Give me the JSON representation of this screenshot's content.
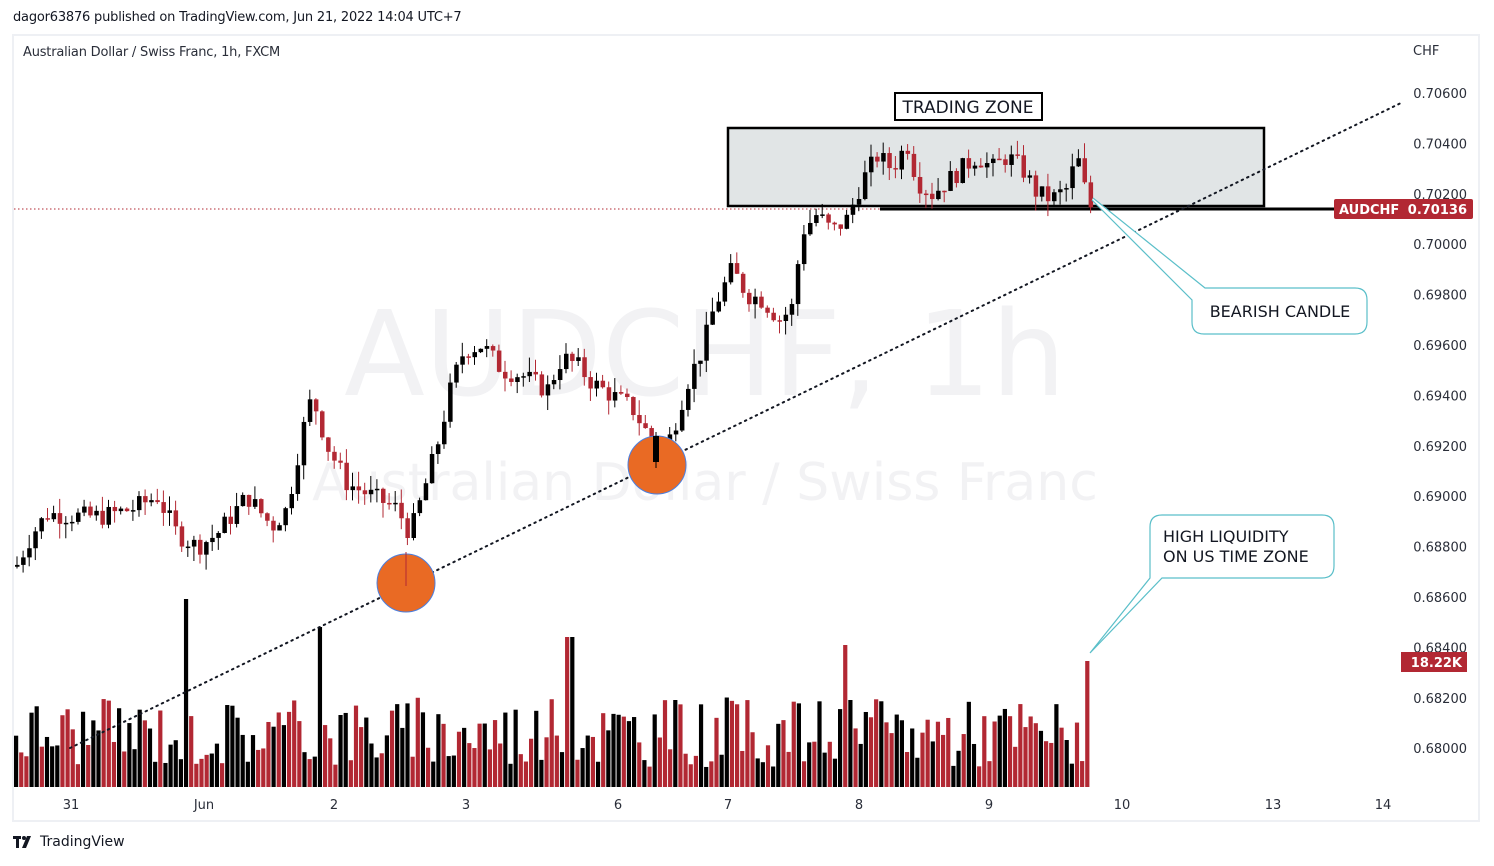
{
  "header": {
    "publisher": "dagor63876 published on TradingView.com, Jun 21, 2022 14:04 UTC+7",
    "symbol_title": "Australian Dollar / Swiss Franc, 1h, FXCM",
    "currency": "CHF"
  },
  "watermark": {
    "symbol": "AUDCHF, 1h",
    "name": "Australian Dollar / Swiss Franc"
  },
  "price_axis": {
    "ticks": [
      "0.70600",
      "0.70400",
      "0.70200",
      "0.70000",
      "0.69800",
      "0.69600",
      "0.69400",
      "0.69200",
      "0.69000",
      "0.68800",
      "0.68600",
      "0.68400",
      "0.68200",
      "0.68000"
    ]
  },
  "time_axis": {
    "ticks": [
      "31",
      "Jun",
      "2",
      "3",
      "6",
      "7",
      "8",
      "9",
      "10",
      "13",
      "14"
    ]
  },
  "last_price": {
    "symbol": "AUDCHF",
    "value": "0.70136",
    "color": "#b22833"
  },
  "volume_label": {
    "value": "18.22K",
    "color": "#b22833"
  },
  "annotations": {
    "trading_zone": "TRADING ZONE",
    "bearish_candle": "BEARISH CANDLE",
    "liquidity_line1": "HIGH LIQUIDITY",
    "liquidity_line2": "ON US TIME ZONE"
  },
  "footer": {
    "brand": "TradingView"
  },
  "colors": {
    "up": "#000000",
    "down": "#b22833",
    "zone_fill": "#e1e5e6",
    "callout": "#5bbfc9",
    "circle": "#e96a24",
    "circle_border": "#4a7fe0"
  },
  "chart_data": {
    "type": "candlestick",
    "title": "Australian Dollar / Swiss Franc, 1h, FXCM",
    "symbol": "AUDCHF",
    "timeframe": "1h",
    "xlabel": "",
    "ylabel": "CHF",
    "ylim": [
      0.6792,
      0.7066
    ],
    "x_ticks": [
      "31",
      "Jun",
      "2",
      "3",
      "6",
      "7",
      "8",
      "9",
      "10",
      "13",
      "14"
    ],
    "y_ticks": [
      0.706,
      0.704,
      0.702,
      0.7,
      0.698,
      0.696,
      0.694,
      0.692,
      0.69,
      0.688,
      0.686,
      0.684,
      0.682,
      0.68
    ],
    "last_price": 0.70136,
    "last_volume": "18.22K",
    "grid": false,
    "key_points": [
      {
        "label": "swing low 1",
        "date": "Jun 2",
        "price": 0.6866
      },
      {
        "label": "swing low 2",
        "date": "Jun 6",
        "price": 0.6912
      },
      {
        "label": "trading zone top",
        "price": 0.7047
      },
      {
        "label": "trading zone bottom",
        "price": 0.7015
      },
      {
        "label": "high",
        "date": "Jun 8",
        "price": 0.7046
      },
      {
        "label": "first visible low",
        "date": "May 31",
        "price": 0.6862
      }
    ],
    "price_path": [
      {
        "date": "May 31",
        "open": 0.6872,
        "close": 0.6892
      },
      {
        "date": "Jun 1",
        "open": 0.6892,
        "close": 0.688
      },
      {
        "date": "Jun 1 late",
        "open": 0.688,
        "close": 0.69
      },
      {
        "date": "Jun 2",
        "open": 0.69,
        "close": 0.688
      },
      {
        "date": "Jun 2 late",
        "open": 0.688,
        "close": 0.6915
      },
      {
        "date": "Jun 3",
        "open": 0.6915,
        "close": 0.696
      },
      {
        "date": "Jun 3 late",
        "open": 0.696,
        "close": 0.694
      },
      {
        "date": "Jun 6",
        "open": 0.694,
        "close": 0.6915
      },
      {
        "date": "Jun 6 late",
        "open": 0.6915,
        "close": 0.696
      },
      {
        "date": "Jun 7",
        "open": 0.696,
        "close": 0.6985
      },
      {
        "date": "Jun 7 late",
        "open": 0.6985,
        "close": 0.6975
      },
      {
        "date": "Jun 8",
        "open": 0.6975,
        "close": 0.704
      },
      {
        "date": "Jun 9",
        "open": 0.704,
        "close": 0.7025
      },
      {
        "date": "Jun 9 late",
        "open": 0.7025,
        "close": 0.70136
      }
    ],
    "trendline": {
      "style": "dotted",
      "from": {
        "date": "May 31",
        "price": 0.6799
      },
      "to": {
        "date": "Jun 14",
        "price": 0.7056
      }
    },
    "volume": {
      "type": "bar",
      "last": "18.22K",
      "max_bar_date": "Jun 1"
    }
  }
}
